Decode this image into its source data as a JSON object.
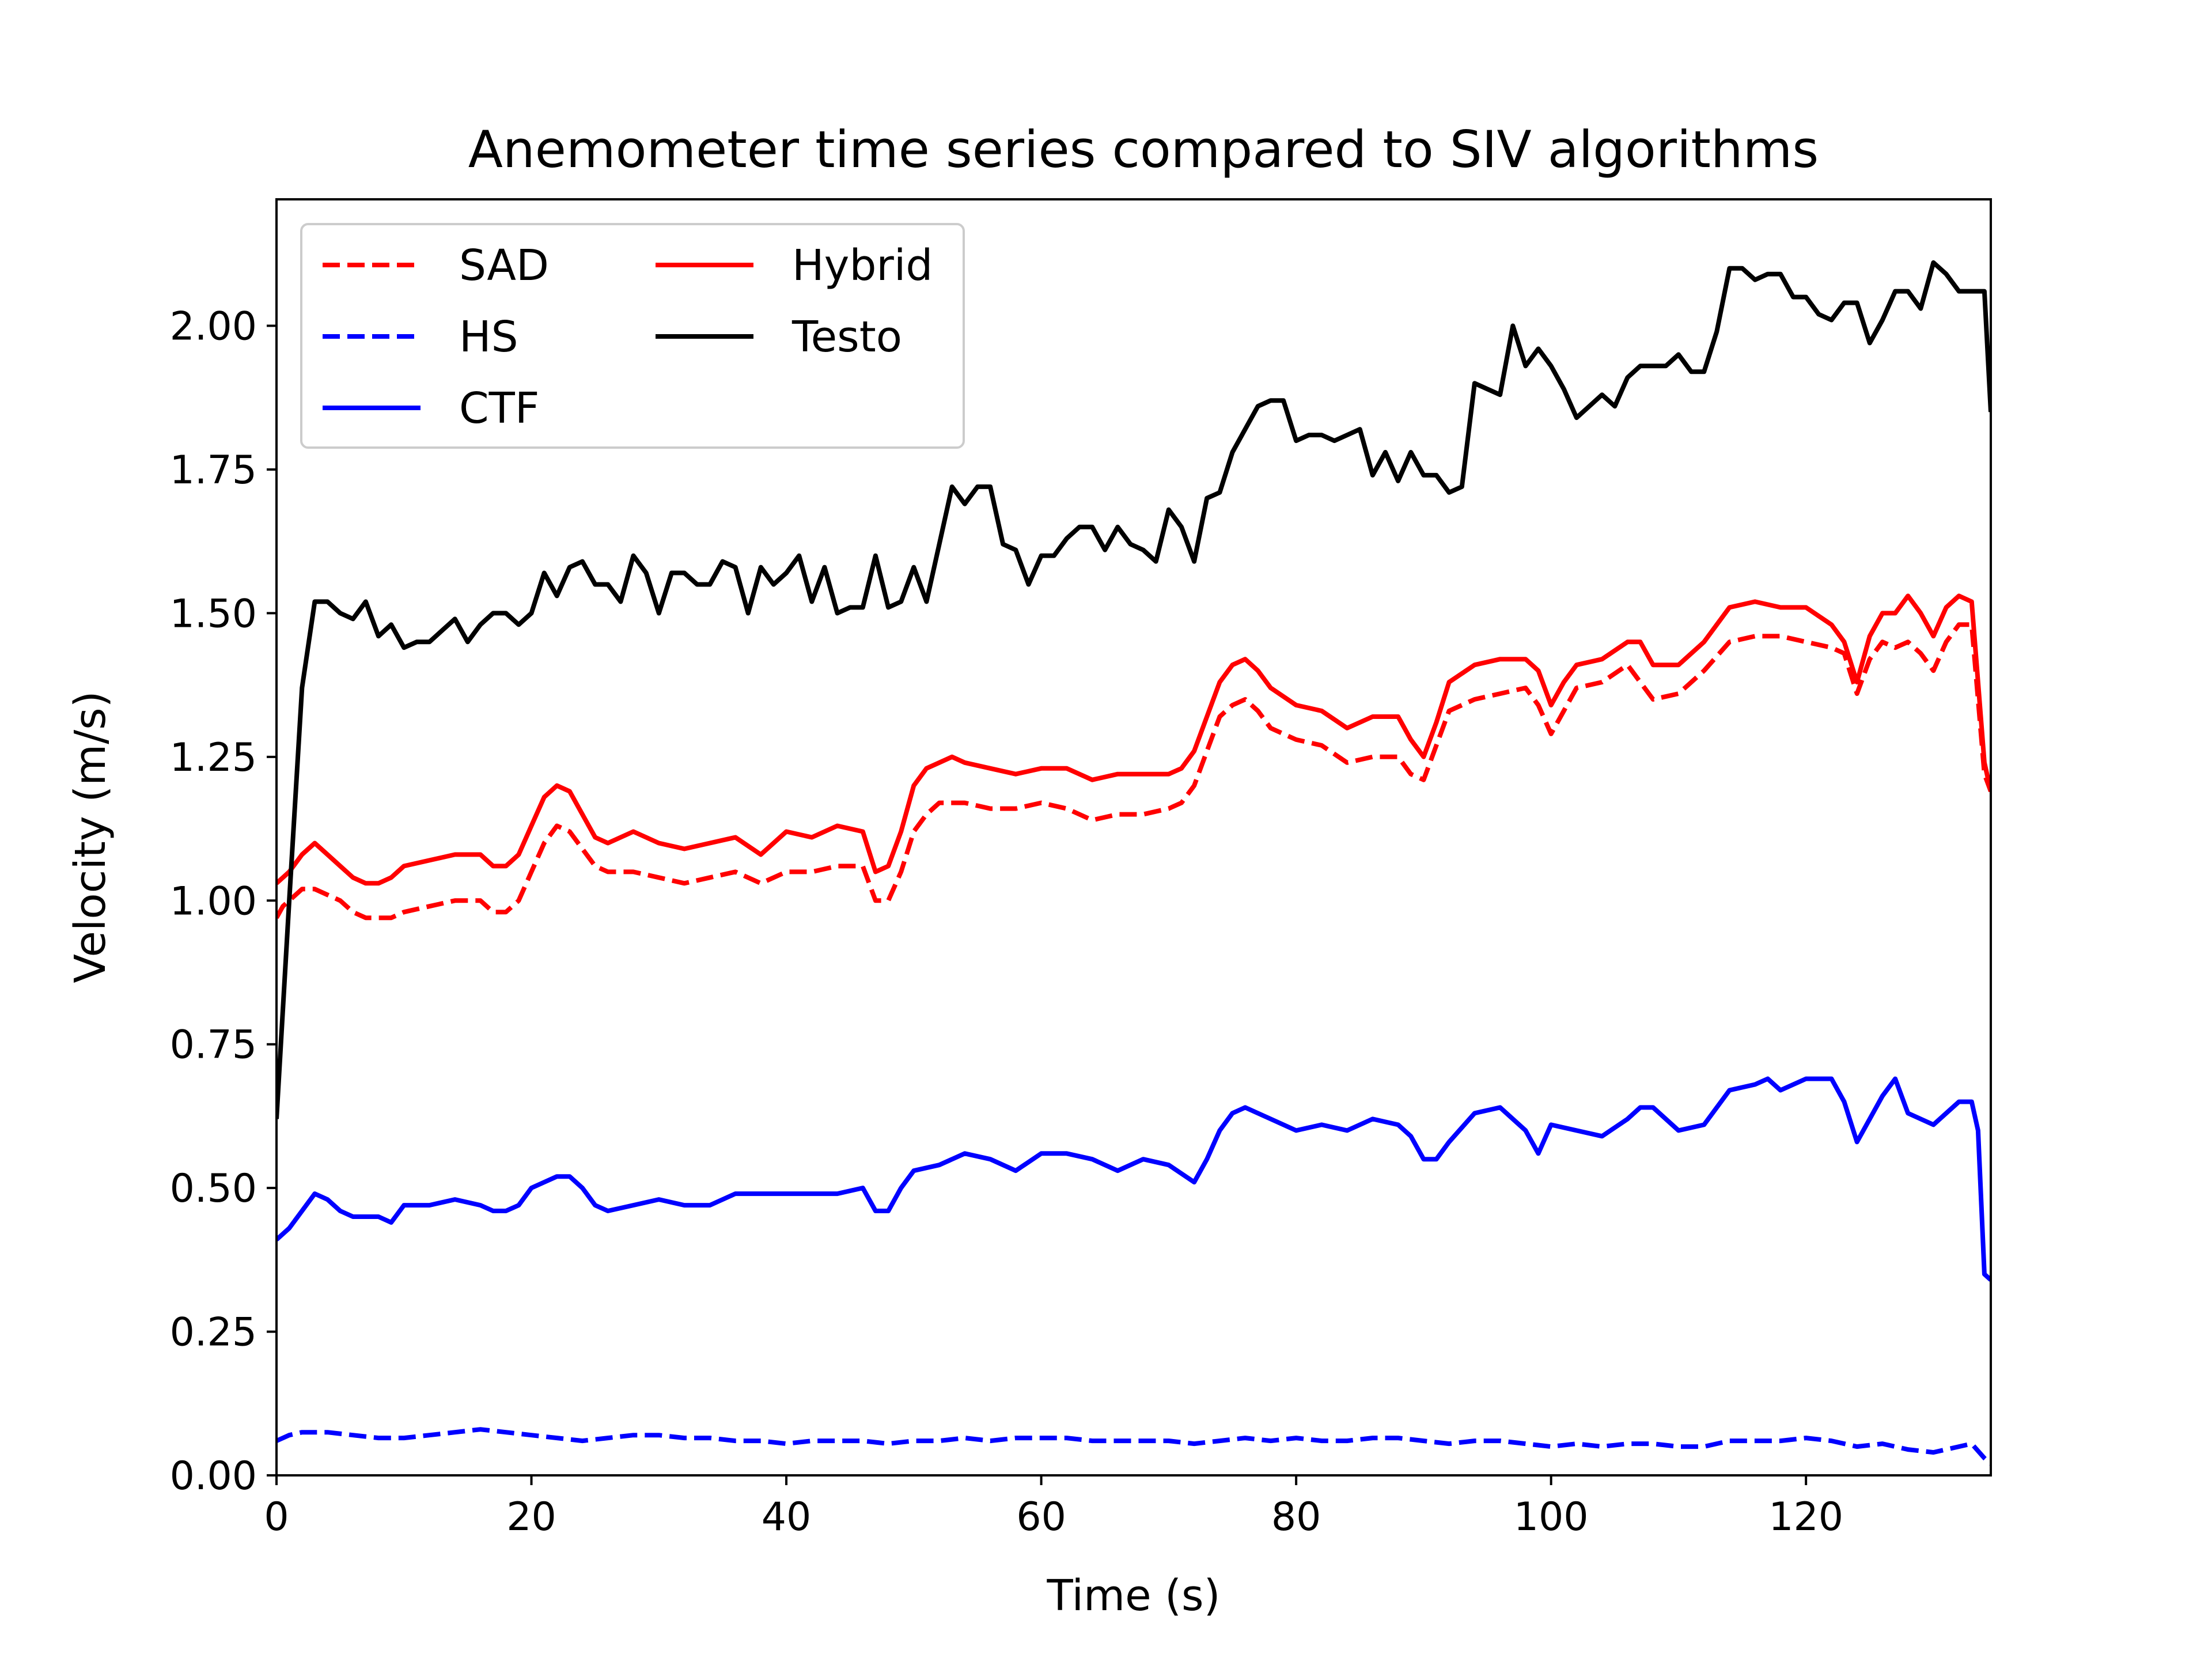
{
  "chart_data": {
    "type": "line",
    "title": "Anemometer time series compared to SIV algorithms",
    "xlabel": "Time (s)",
    "ylabel": "Velocity (m/s)",
    "xlim": [
      0,
      134.5
    ],
    "ylim": [
      0,
      2.22
    ],
    "xticks": [
      0,
      20,
      40,
      60,
      80,
      100,
      120
    ],
    "xtick_labels": [
      "0",
      "20",
      "40",
      "60",
      "80",
      "100",
      "120"
    ],
    "yticks": [
      0,
      0.25,
      0.5,
      0.75,
      1.0,
      1.25,
      1.5,
      1.75,
      2.0
    ],
    "ytick_labels": [
      "0.00",
      "0.25",
      "0.50",
      "0.75",
      "1.00",
      "1.25",
      "1.50",
      "1.75",
      "2.00"
    ],
    "grid": false,
    "legend_position": "top-left",
    "series": [
      {
        "name": "SAD",
        "color": "#ff0000",
        "style": "dashed",
        "x": [
          0,
          0.5,
          1,
          2,
          3,
          4,
          5,
          6,
          7,
          8,
          9,
          10,
          12,
          14,
          16,
          17,
          18,
          19,
          20,
          21,
          22,
          23,
          24,
          25,
          26,
          28,
          30,
          32,
          34,
          36,
          38,
          40,
          42,
          44,
          46,
          47,
          48,
          49,
          50,
          51,
          52,
          53,
          54,
          56,
          58,
          60,
          62,
          64,
          66,
          68,
          70,
          71,
          72,
          73,
          74,
          75,
          76,
          77,
          78,
          80,
          82,
          84,
          86,
          88,
          89,
          90,
          91,
          92,
          94,
          96,
          98,
          99,
          100,
          101,
          102,
          104,
          106,
          107,
          108,
          110,
          112,
          114,
          116,
          118,
          120,
          122,
          123,
          124,
          125,
          126,
          127,
          128,
          129,
          130,
          131,
          132,
          133,
          134,
          134.5
        ],
        "y": [
          0.97,
          0.99,
          1.0,
          1.02,
          1.02,
          1.01,
          1.0,
          0.98,
          0.97,
          0.97,
          0.97,
          0.98,
          0.99,
          1.0,
          1.0,
          0.98,
          0.98,
          1.0,
          1.05,
          1.1,
          1.13,
          1.12,
          1.09,
          1.06,
          1.05,
          1.05,
          1.04,
          1.03,
          1.04,
          1.05,
          1.03,
          1.05,
          1.05,
          1.06,
          1.06,
          1.0,
          1.0,
          1.05,
          1.12,
          1.15,
          1.17,
          1.17,
          1.17,
          1.16,
          1.16,
          1.17,
          1.16,
          1.14,
          1.15,
          1.15,
          1.16,
          1.17,
          1.2,
          1.26,
          1.32,
          1.34,
          1.35,
          1.33,
          1.3,
          1.28,
          1.27,
          1.24,
          1.25,
          1.25,
          1.22,
          1.21,
          1.27,
          1.33,
          1.35,
          1.36,
          1.37,
          1.34,
          1.29,
          1.33,
          1.37,
          1.38,
          1.41,
          1.38,
          1.35,
          1.36,
          1.4,
          1.45,
          1.46,
          1.46,
          1.45,
          1.44,
          1.43,
          1.36,
          1.42,
          1.45,
          1.44,
          1.45,
          1.43,
          1.4,
          1.45,
          1.48,
          1.48,
          1.22,
          1.19
        ]
      },
      {
        "name": "HS",
        "color": "#0000ff",
        "style": "dashed",
        "x": [
          0,
          1,
          2,
          4,
          6,
          8,
          10,
          12,
          14,
          16,
          18,
          20,
          22,
          24,
          26,
          28,
          30,
          32,
          34,
          36,
          38,
          40,
          42,
          44,
          46,
          48,
          50,
          52,
          54,
          56,
          58,
          60,
          62,
          64,
          66,
          68,
          70,
          72,
          74,
          76,
          78,
          80,
          82,
          84,
          86,
          88,
          90,
          92,
          94,
          96,
          98,
          100,
          102,
          104,
          106,
          108,
          110,
          112,
          114,
          116,
          118,
          120,
          122,
          124,
          126,
          128,
          130,
          132,
          133,
          134,
          134.5
        ],
        "y": [
          0.06,
          0.07,
          0.075,
          0.075,
          0.07,
          0.065,
          0.065,
          0.07,
          0.075,
          0.08,
          0.075,
          0.07,
          0.065,
          0.06,
          0.065,
          0.07,
          0.07,
          0.065,
          0.065,
          0.06,
          0.06,
          0.055,
          0.06,
          0.06,
          0.06,
          0.055,
          0.06,
          0.06,
          0.065,
          0.06,
          0.065,
          0.065,
          0.065,
          0.06,
          0.06,
          0.06,
          0.06,
          0.055,
          0.06,
          0.065,
          0.06,
          0.065,
          0.06,
          0.06,
          0.065,
          0.065,
          0.06,
          0.055,
          0.06,
          0.06,
          0.055,
          0.05,
          0.055,
          0.05,
          0.055,
          0.055,
          0.05,
          0.05,
          0.06,
          0.06,
          0.06,
          0.065,
          0.06,
          0.05,
          0.055,
          0.045,
          0.04,
          0.05,
          0.055,
          0.03,
          0.02
        ]
      },
      {
        "name": "CTF",
        "color": "#0000ff",
        "style": "solid",
        "x": [
          0,
          1,
          2,
          3,
          4,
          5,
          6,
          7,
          8,
          9,
          10,
          12,
          14,
          16,
          17,
          18,
          19,
          20,
          21,
          22,
          23,
          24,
          25,
          26,
          28,
          30,
          32,
          34,
          36,
          38,
          40,
          42,
          44,
          46,
          47,
          48,
          49,
          50,
          52,
          54,
          56,
          58,
          60,
          62,
          64,
          66,
          68,
          70,
          72,
          73,
          74,
          75,
          76,
          77,
          78,
          80,
          82,
          84,
          86,
          88,
          89,
          90,
          91,
          92,
          94,
          96,
          98,
          99,
          100,
          102,
          104,
          106,
          107,
          108,
          110,
          112,
          114,
          116,
          117,
          118,
          120,
          122,
          123,
          124,
          125,
          126,
          127,
          128,
          130,
          131,
          132,
          133,
          133.5,
          134,
          134.5
        ],
        "y": [
          0.41,
          0.43,
          0.46,
          0.49,
          0.48,
          0.46,
          0.45,
          0.45,
          0.45,
          0.44,
          0.47,
          0.47,
          0.48,
          0.47,
          0.46,
          0.46,
          0.47,
          0.5,
          0.51,
          0.52,
          0.52,
          0.5,
          0.47,
          0.46,
          0.47,
          0.48,
          0.47,
          0.47,
          0.49,
          0.49,
          0.49,
          0.49,
          0.49,
          0.5,
          0.46,
          0.46,
          0.5,
          0.53,
          0.54,
          0.56,
          0.55,
          0.53,
          0.56,
          0.56,
          0.55,
          0.53,
          0.55,
          0.54,
          0.51,
          0.55,
          0.6,
          0.63,
          0.64,
          0.63,
          0.62,
          0.6,
          0.61,
          0.6,
          0.62,
          0.61,
          0.59,
          0.55,
          0.55,
          0.58,
          0.63,
          0.64,
          0.6,
          0.56,
          0.61,
          0.6,
          0.59,
          0.62,
          0.64,
          0.64,
          0.6,
          0.61,
          0.67,
          0.68,
          0.69,
          0.67,
          0.69,
          0.69,
          0.65,
          0.58,
          0.62,
          0.66,
          0.69,
          0.63,
          0.61,
          0.63,
          0.65,
          0.65,
          0.6,
          0.35,
          0.34
        ]
      },
      {
        "name": "Hybrid",
        "color": "#ff0000",
        "style": "solid",
        "x": [
          0,
          0.5,
          1,
          2,
          3,
          4,
          5,
          6,
          7,
          8,
          9,
          10,
          12,
          14,
          16,
          17,
          18,
          19,
          20,
          21,
          22,
          23,
          24,
          25,
          26,
          28,
          30,
          32,
          34,
          36,
          38,
          40,
          42,
          44,
          46,
          47,
          48,
          49,
          50,
          51,
          52,
          53,
          54,
          56,
          58,
          60,
          62,
          64,
          66,
          68,
          70,
          71,
          72,
          73,
          74,
          75,
          76,
          77,
          78,
          80,
          82,
          84,
          86,
          88,
          89,
          90,
          91,
          92,
          94,
          96,
          98,
          99,
          100,
          101,
          102,
          104,
          106,
          107,
          108,
          110,
          112,
          114,
          116,
          118,
          120,
          122,
          123,
          124,
          125,
          126,
          127,
          128,
          129,
          130,
          131,
          132,
          133,
          134,
          134.5
        ],
        "y": [
          1.03,
          1.04,
          1.05,
          1.08,
          1.1,
          1.08,
          1.06,
          1.04,
          1.03,
          1.03,
          1.04,
          1.06,
          1.07,
          1.08,
          1.08,
          1.06,
          1.06,
          1.08,
          1.13,
          1.18,
          1.2,
          1.19,
          1.15,
          1.11,
          1.1,
          1.12,
          1.1,
          1.09,
          1.1,
          1.11,
          1.08,
          1.12,
          1.11,
          1.13,
          1.12,
          1.05,
          1.06,
          1.12,
          1.2,
          1.23,
          1.24,
          1.25,
          1.24,
          1.23,
          1.22,
          1.23,
          1.23,
          1.21,
          1.22,
          1.22,
          1.22,
          1.23,
          1.26,
          1.32,
          1.38,
          1.41,
          1.42,
          1.4,
          1.37,
          1.34,
          1.33,
          1.3,
          1.32,
          1.32,
          1.28,
          1.25,
          1.31,
          1.38,
          1.41,
          1.42,
          1.42,
          1.4,
          1.34,
          1.38,
          1.41,
          1.42,
          1.45,
          1.45,
          1.41,
          1.41,
          1.45,
          1.51,
          1.52,
          1.51,
          1.51,
          1.48,
          1.45,
          1.38,
          1.46,
          1.5,
          1.5,
          1.53,
          1.5,
          1.46,
          1.51,
          1.53,
          1.52,
          1.24,
          1.19
        ]
      },
      {
        "name": "Testo",
        "color": "#000000",
        "style": "solid",
        "x": [
          0,
          1,
          2,
          3,
          4,
          5,
          6,
          7,
          8,
          9,
          10,
          11,
          12,
          13,
          14,
          15,
          16,
          17,
          18,
          19,
          20,
          21,
          22,
          23,
          24,
          25,
          26,
          27,
          28,
          29,
          30,
          31,
          32,
          33,
          34,
          35,
          36,
          37,
          38,
          39,
          40,
          41,
          42,
          43,
          44,
          45,
          46,
          47,
          48,
          49,
          50,
          51,
          52,
          53,
          54,
          55,
          56,
          57,
          58,
          59,
          60,
          61,
          62,
          63,
          64,
          65,
          66,
          67,
          68,
          69,
          70,
          71,
          72,
          73,
          74,
          75,
          76,
          77,
          78,
          79,
          80,
          81,
          82,
          83,
          84,
          85,
          86,
          87,
          88,
          89,
          90,
          91,
          92,
          93,
          94,
          95,
          96,
          97,
          98,
          99,
          100,
          101,
          102,
          103,
          104,
          105,
          106,
          107,
          108,
          109,
          110,
          111,
          112,
          113,
          114,
          115,
          116,
          117,
          118,
          119,
          120,
          121,
          122,
          123,
          124,
          125,
          126,
          127,
          128,
          129,
          130,
          131,
          132,
          133,
          134,
          134.5
        ],
        "y": [
          0.62,
          1.0,
          1.37,
          1.52,
          1.52,
          1.5,
          1.49,
          1.52,
          1.46,
          1.48,
          1.44,
          1.45,
          1.45,
          1.47,
          1.49,
          1.45,
          1.48,
          1.5,
          1.5,
          1.48,
          1.5,
          1.57,
          1.53,
          1.58,
          1.59,
          1.55,
          1.55,
          1.52,
          1.6,
          1.57,
          1.5,
          1.57,
          1.57,
          1.55,
          1.55,
          1.59,
          1.58,
          1.5,
          1.58,
          1.55,
          1.57,
          1.6,
          1.52,
          1.58,
          1.5,
          1.51,
          1.51,
          1.6,
          1.51,
          1.52,
          1.58,
          1.52,
          1.62,
          1.72,
          1.69,
          1.72,
          1.72,
          1.62,
          1.61,
          1.55,
          1.6,
          1.6,
          1.63,
          1.65,
          1.65,
          1.61,
          1.65,
          1.62,
          1.61,
          1.59,
          1.68,
          1.65,
          1.59,
          1.7,
          1.71,
          1.78,
          1.82,
          1.86,
          1.87,
          1.87,
          1.8,
          1.81,
          1.81,
          1.8,
          1.81,
          1.82,
          1.74,
          1.78,
          1.73,
          1.78,
          1.74,
          1.74,
          1.71,
          1.72,
          1.9,
          1.89,
          1.88,
          2.0,
          1.93,
          1.96,
          1.93,
          1.89,
          1.84,
          1.86,
          1.88,
          1.86,
          1.91,
          1.93,
          1.93,
          1.93,
          1.95,
          1.92,
          1.92,
          1.99,
          2.1,
          2.1,
          2.08,
          2.09,
          2.09,
          2.05,
          2.05,
          2.02,
          2.01,
          2.04,
          2.04,
          1.97,
          2.01,
          2.06,
          2.06,
          2.03,
          2.11,
          2.09,
          2.06,
          2.06,
          2.06,
          1.85
        ]
      }
    ]
  }
}
